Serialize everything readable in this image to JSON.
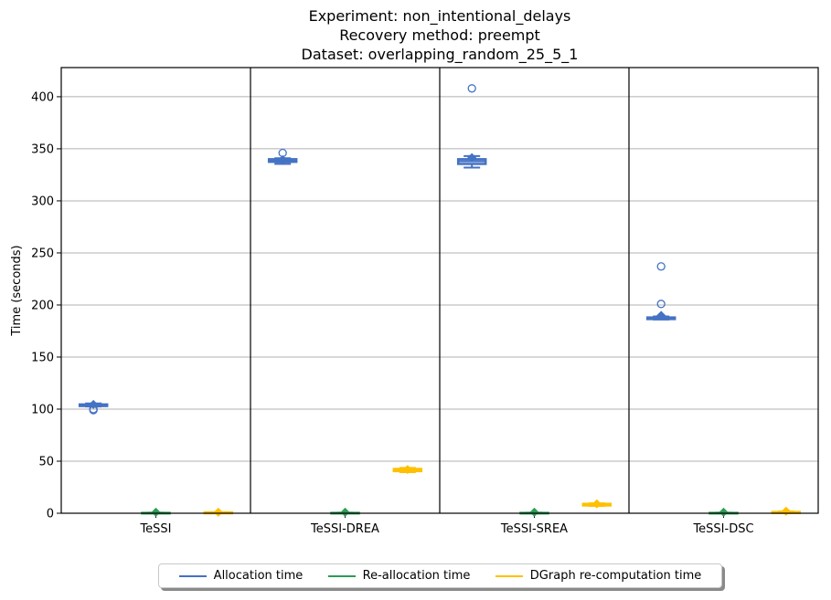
{
  "chart_data": {
    "type": "box",
    "title_lines": [
      "Experiment: non_intentional_delays",
      "Recovery method: preempt",
      "Dataset: overlapping_random_25_5_1"
    ],
    "ylabel": "Time (seconds)",
    "ylim": [
      0,
      428
    ],
    "yticks": [
      0,
      50,
      100,
      150,
      200,
      250,
      300,
      350,
      400
    ],
    "grid": "horizontal",
    "legend_position": "bottom-center",
    "categories": [
      "TeSSI",
      "TeSSI-DREA",
      "TeSSI-SREA",
      "TeSSI-DSC"
    ],
    "series": [
      {
        "name": "Allocation time",
        "color": "#4472c4",
        "boxes": [
          {
            "whislo": 102.5,
            "q1": 103.0,
            "med": 103.5,
            "q3": 104.5,
            "whishi": 105.5,
            "mean": 104.5,
            "fliers": [
              99.0,
              100.0
            ]
          },
          {
            "whislo": 335.5,
            "q1": 337.5,
            "med": 338.5,
            "q3": 340.0,
            "whishi": 341.0,
            "mean": 339.5,
            "fliers": [
              346.0
            ]
          },
          {
            "whislo": 332.0,
            "q1": 335.5,
            "med": 338.0,
            "q3": 340.0,
            "whishi": 343.0,
            "mean": 341.5,
            "fliers": [
              408.0
            ]
          },
          {
            "whislo": 186.0,
            "q1": 186.5,
            "med": 187.0,
            "q3": 188.0,
            "whishi": 189.0,
            "mean": 190.0,
            "fliers": [
              201.0,
              237.0
            ]
          }
        ]
      },
      {
        "name": "Re-allocation time",
        "color": "#2e9b57",
        "boxes": [
          {
            "whislo": 0,
            "q1": 0,
            "med": 0,
            "q3": 0.3,
            "whishi": 0.5,
            "mean": 1.0,
            "fliers": []
          },
          {
            "whislo": 0,
            "q1": 0,
            "med": 0,
            "q3": 0.3,
            "whishi": 0.5,
            "mean": 1.0,
            "fliers": []
          },
          {
            "whislo": 0,
            "q1": 0,
            "med": 0,
            "q3": 0.3,
            "whishi": 0.5,
            "mean": 1.0,
            "fliers": []
          },
          {
            "whislo": 0,
            "q1": 0,
            "med": 0,
            "q3": 0.3,
            "whishi": 0.5,
            "mean": 1.0,
            "fliers": []
          }
        ]
      },
      {
        "name": "DGraph re-computation time",
        "color": "#ffc000",
        "boxes": [
          {
            "whislo": 0,
            "q1": 0,
            "med": 0.5,
            "q3": 0.8,
            "whishi": 1.0,
            "mean": 1.0,
            "fliers": []
          },
          {
            "whislo": 39.5,
            "q1": 40.5,
            "med": 41.5,
            "q3": 42.5,
            "whishi": 43.5,
            "mean": 42.0,
            "fliers": []
          },
          {
            "whislo": 7.0,
            "q1": 7.5,
            "med": 8.5,
            "q3": 9.0,
            "whishi": 9.5,
            "mean": 9.0,
            "fliers": []
          },
          {
            "whislo": 0,
            "q1": 0.3,
            "med": 0.8,
            "q3": 1.2,
            "whishi": 1.8,
            "mean": 2.0,
            "fliers": []
          }
        ]
      }
    ]
  }
}
